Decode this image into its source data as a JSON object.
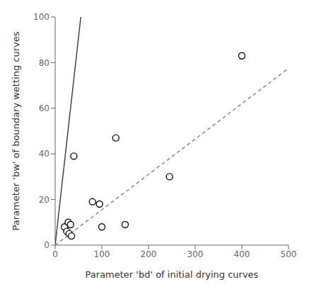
{
  "chart_data": {
    "type": "scatter",
    "xlabel": "Parameter 'bd' of initial drying curves",
    "ylabel": "Parameter 'bw' of boundary wetting curves",
    "series": [
      {
        "type": "line",
        "x": [
          0,
          55
        ],
        "values": [
          0,
          100
        ],
        "color": "#444444",
        "line_style": "solid"
      },
      {
        "type": "line",
        "x": [
          0,
          500
        ],
        "values": [
          0,
          77.5
        ],
        "color": "#888888",
        "line_style": "dashed"
      },
      {
        "type": "scatter",
        "x": [
          20,
          25,
          28,
          30,
          33,
          35,
          40,
          80,
          95,
          100,
          130,
          150,
          245,
          400
        ],
        "values": [
          8,
          6,
          10,
          5,
          9,
          4,
          39,
          19,
          18,
          8,
          47,
          9,
          30,
          83
        ],
        "color": "#111111",
        "marker": "circle"
      }
    ],
    "xlim": [
      0,
      500
    ],
    "ylim": [
      0,
      100
    ],
    "xticks": [
      0,
      100,
      200,
      300,
      400,
      500
    ],
    "yticks": [
      0,
      20,
      40,
      60,
      80,
      100
    ],
    "grid": false
  }
}
